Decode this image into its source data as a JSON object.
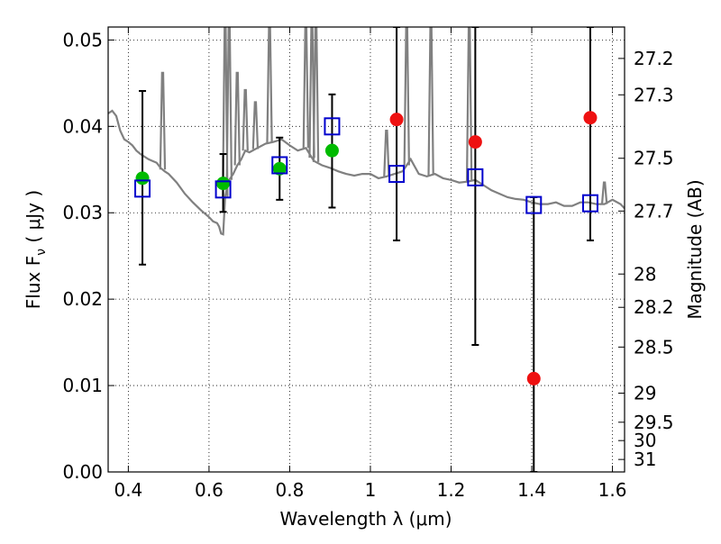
{
  "chart_data": {
    "type": "scatter",
    "xlabel": "Wavelength  λ (μm)",
    "ylabel": "Flux  F",
    "ylabel_sub": "ν",
    "ylabel_unit": " ( μJy )",
    "y2label": "Magnitude (AB)",
    "xlim": [
      0.35,
      1.63
    ],
    "ylim": [
      0.0,
      0.0515
    ],
    "grid": true,
    "x_ticks": [
      {
        "value": 0.4,
        "label": "0.4"
      },
      {
        "value": 0.6,
        "label": "0.6"
      },
      {
        "value": 0.8,
        "label": "0.8"
      },
      {
        "value": 1.0,
        "label": "1"
      },
      {
        "value": 1.2,
        "label": "1.2"
      },
      {
        "value": 1.4,
        "label": "1.4"
      },
      {
        "value": 1.6,
        "label": "1.6"
      }
    ],
    "y_ticks": [
      {
        "value": 0.0,
        "label": "0.00"
      },
      {
        "value": 0.01,
        "label": "0.01"
      },
      {
        "value": 0.02,
        "label": "0.02"
      },
      {
        "value": 0.03,
        "label": "0.03"
      },
      {
        "value": 0.04,
        "label": "0.04"
      },
      {
        "value": 0.05,
        "label": "0.05"
      }
    ],
    "y2_ticks": [
      {
        "value": 27.2,
        "label": "27.2"
      },
      {
        "value": 27.3,
        "label": "27.3"
      },
      {
        "value": 27.5,
        "label": "27.5"
      },
      {
        "value": 27.7,
        "label": "27.7"
      },
      {
        "value": 28.0,
        "label": "28"
      },
      {
        "value": 28.2,
        "label": "28.2"
      },
      {
        "value": 28.5,
        "label": "28.5"
      },
      {
        "value": 29.0,
        "label": "29"
      },
      {
        "value": 29.5,
        "label": "29.5"
      },
      {
        "value": 30.0,
        "label": "30"
      },
      {
        "value": 31.0,
        "label": "31"
      }
    ],
    "model_spectrum": {
      "color": "#808080",
      "x": [
        0.35,
        0.36,
        0.37,
        0.38,
        0.39,
        0.4,
        0.41,
        0.42,
        0.43,
        0.44,
        0.45,
        0.46,
        0.47,
        0.48,
        0.485,
        0.49,
        0.5,
        0.52,
        0.54,
        0.56,
        0.58,
        0.6,
        0.61,
        0.62,
        0.625,
        0.63,
        0.635,
        0.64,
        0.645,
        0.65,
        0.66,
        0.67,
        0.68,
        0.69,
        0.7,
        0.72,
        0.74,
        0.76,
        0.78,
        0.8,
        0.82,
        0.84,
        0.86,
        0.88,
        0.9,
        0.92,
        0.94,
        0.96,
        0.98,
        1.0,
        1.02,
        1.04,
        1.06,
        1.08,
        1.1,
        1.12,
        1.14,
        1.16,
        1.18,
        1.2,
        1.22,
        1.24,
        1.26,
        1.28,
        1.3,
        1.32,
        1.34,
        1.36,
        1.38,
        1.4,
        1.42,
        1.44,
        1.46,
        1.48,
        1.5,
        1.52,
        1.54,
        1.56,
        1.58,
        1.6,
        1.62,
        1.63
      ],
      "y": [
        0.0415,
        0.0418,
        0.0412,
        0.0395,
        0.0385,
        0.0382,
        0.0378,
        0.0372,
        0.0368,
        0.0365,
        0.0362,
        0.036,
        0.0358,
        0.0352,
        0.035,
        0.0348,
        0.0345,
        0.0335,
        0.0322,
        0.0312,
        0.0303,
        0.0295,
        0.029,
        0.0288,
        0.0284,
        0.0276,
        0.0275,
        0.0318,
        0.033,
        0.0338,
        0.0345,
        0.0355,
        0.0362,
        0.0372,
        0.037,
        0.0375,
        0.038,
        0.0382,
        0.0385,
        0.0378,
        0.0372,
        0.0375,
        0.036,
        0.0355,
        0.0352,
        0.0348,
        0.0345,
        0.0343,
        0.0345,
        0.0345,
        0.034,
        0.0342,
        0.0345,
        0.0348,
        0.0362,
        0.0345,
        0.0342,
        0.0345,
        0.034,
        0.0338,
        0.0335,
        0.0336,
        0.0338,
        0.0332,
        0.0326,
        0.0322,
        0.0318,
        0.0316,
        0.0315,
        0.0312,
        0.031,
        0.031,
        0.0312,
        0.0308,
        0.0308,
        0.0312,
        0.0312,
        0.031,
        0.031,
        0.0315,
        0.031,
        0.0305
      ],
      "spikes": [
        {
          "x": 0.485,
          "y": 0.0462
        },
        {
          "x": 0.64,
          "y": 0.0515
        },
        {
          "x": 0.65,
          "y": 0.0515
        },
        {
          "x": 0.67,
          "y": 0.0462
        },
        {
          "x": 0.69,
          "y": 0.0442
        },
        {
          "x": 0.715,
          "y": 0.0428
        },
        {
          "x": 0.75,
          "y": 0.0515
        },
        {
          "x": 0.84,
          "y": 0.0515
        },
        {
          "x": 0.855,
          "y": 0.0515
        },
        {
          "x": 0.865,
          "y": 0.0515
        },
        {
          "x": 1.04,
          "y": 0.0395
        },
        {
          "x": 1.09,
          "y": 0.0515
        },
        {
          "x": 1.15,
          "y": 0.0515
        },
        {
          "x": 1.245,
          "y": 0.0515
        },
        {
          "x": 1.58,
          "y": 0.0335
        }
      ]
    },
    "series": [
      {
        "marker": "circle",
        "color": "#00bb00",
        "points": [
          {
            "x": 0.435,
            "y": 0.034
          },
          {
            "x": 0.635,
            "y": 0.0334
          },
          {
            "x": 0.775,
            "y": 0.0351
          },
          {
            "x": 0.905,
            "y": 0.0372
          }
        ]
      },
      {
        "marker": "circle",
        "color": "#ee1111",
        "points": [
          {
            "x": 1.065,
            "y": 0.0408
          },
          {
            "x": 1.26,
            "y": 0.0382
          },
          {
            "x": 1.405,
            "y": 0.0108
          },
          {
            "x": 1.545,
            "y": 0.041
          }
        ]
      },
      {
        "marker": "open-square",
        "color": "#0000cc",
        "points": [
          {
            "x": 0.435,
            "y": 0.0328
          },
          {
            "x": 0.635,
            "y": 0.0327
          },
          {
            "x": 0.775,
            "y": 0.0355
          },
          {
            "x": 0.905,
            "y": 0.04
          },
          {
            "x": 1.065,
            "y": 0.0345
          },
          {
            "x": 1.26,
            "y": 0.0341
          },
          {
            "x": 1.405,
            "y": 0.0309
          },
          {
            "x": 1.545,
            "y": 0.0311
          }
        ]
      }
    ],
    "error_bars": [
      {
        "x": 0.435,
        "y_low": 0.024,
        "y_high": 0.0441
      },
      {
        "x": 0.635,
        "y_low": 0.0301,
        "y_high": 0.0368
      },
      {
        "x": 0.775,
        "y_low": 0.0315,
        "y_high": 0.0387
      },
      {
        "x": 0.905,
        "y_low": 0.0306,
        "y_high": 0.0437
      },
      {
        "x": 1.065,
        "y_low": 0.0268,
        "y_high": 0.0515
      },
      {
        "x": 1.26,
        "y_low": 0.0147,
        "y_high": 0.0515
      },
      {
        "x": 1.405,
        "y_low": 0.0,
        "y_high": 0.0318
      },
      {
        "x": 1.545,
        "y_low": 0.0268,
        "y_high": 0.0515
      }
    ]
  }
}
